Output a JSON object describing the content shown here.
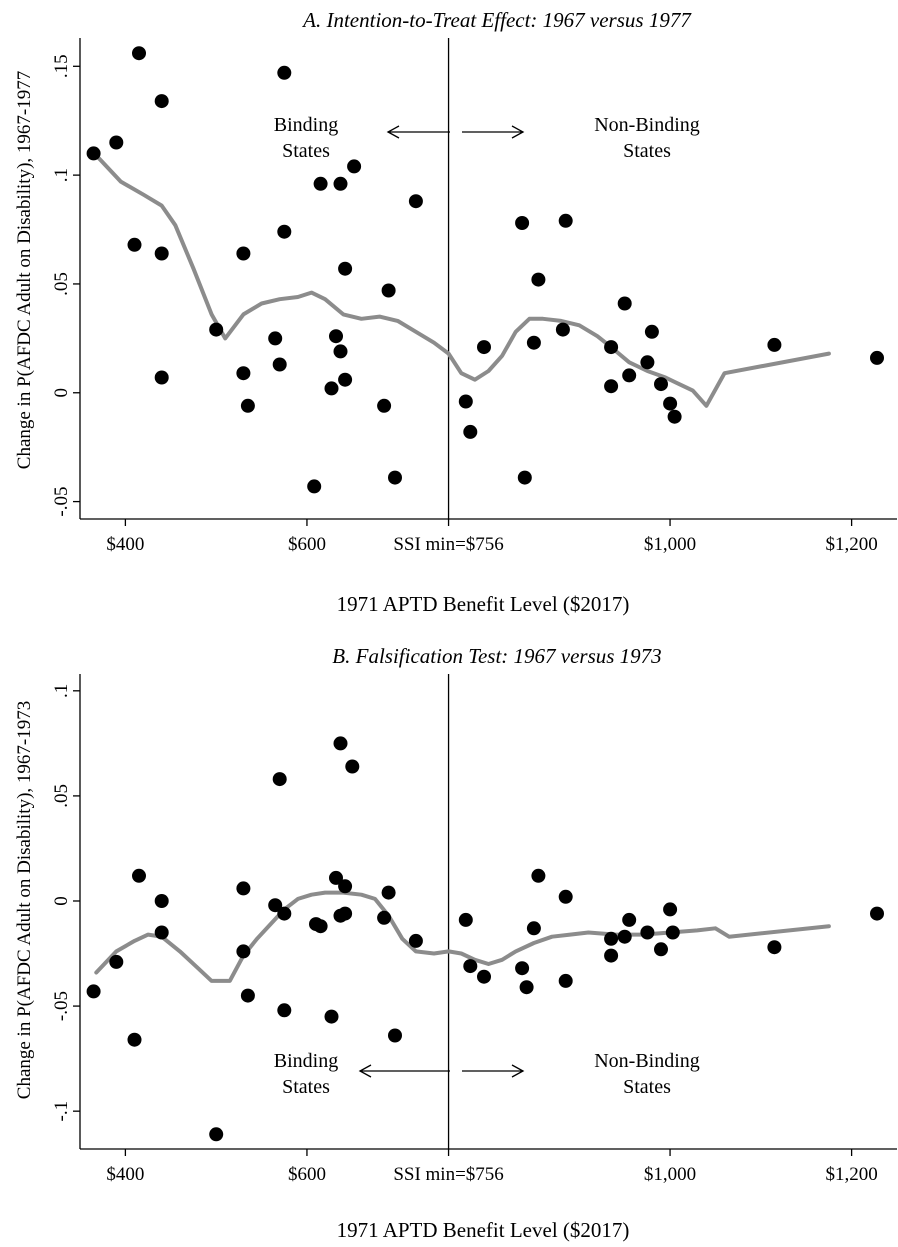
{
  "panels": [
    {
      "title": "A. Intention-to-Treat Effect: 1967 versus 1977",
      "xlabel": "1971 APTD Benefit Level ($2017)",
      "ylabel": "Change in P(AFDC Adult on Disability), 1967-1977",
      "x_ticks": [
        {
          "value": 400,
          "label": "$400"
        },
        {
          "value": 600,
          "label": "$600"
        },
        {
          "value": 1000,
          "label": "$1,000"
        },
        {
          "value": 1200,
          "label": "$1,200"
        }
      ],
      "threshold": {
        "value": 756,
        "label": "SSI min=$756"
      },
      "y_ticks": [
        {
          "value": 0.15,
          "label": ".15"
        },
        {
          "value": 0.1,
          "label": ".1"
        },
        {
          "value": 0.05,
          "label": ".05"
        },
        {
          "value": 0,
          "label": "0"
        },
        {
          "value": -0.05,
          "label": "-.05"
        }
      ],
      "binding_label": [
        "Binding",
        "States"
      ],
      "nonbinding_label": [
        "Non-Binding",
        "States"
      ]
    },
    {
      "title": "B. Falsification Test: 1967 versus 1973",
      "xlabel": "1971 APTD Benefit Level ($2017)",
      "ylabel": "Change in P(AFDC Adult on Disability), 1967-1973",
      "x_ticks": [
        {
          "value": 400,
          "label": "$400"
        },
        {
          "value": 600,
          "label": "$600"
        },
        {
          "value": 1000,
          "label": "$1,000"
        },
        {
          "value": 1200,
          "label": "$1,200"
        }
      ],
      "threshold": {
        "value": 756,
        "label": "SSI min=$756"
      },
      "y_ticks": [
        {
          "value": 0.1,
          "label": ".1"
        },
        {
          "value": 0.05,
          "label": ".05"
        },
        {
          "value": 0,
          "label": "0"
        },
        {
          "value": -0.05,
          "label": "-.05"
        },
        {
          "value": -0.1,
          "label": "-.1"
        }
      ],
      "binding_label": [
        "Binding",
        "States"
      ],
      "nonbinding_label": [
        "Non-Binding",
        "States"
      ]
    }
  ],
  "chart_data": [
    {
      "type": "scatter",
      "title": "A. Intention-to-Treat Effect: 1967 versus 1977",
      "xlabel": "1971 APTD Benefit Level ($2017)",
      "ylabel": "Change in P(AFDC Adult on Disability), 1967-1977",
      "xlim": [
        350,
        1250
      ],
      "ylim": [
        -0.058,
        0.163
      ],
      "grid": false,
      "threshold_x": 756,
      "points": [
        [
          365,
          0.11
        ],
        [
          390,
          0.115
        ],
        [
          410,
          0.068
        ],
        [
          415,
          0.156
        ],
        [
          440,
          0.134
        ],
        [
          440,
          0.064
        ],
        [
          440,
          0.007
        ],
        [
          500,
          0.029
        ],
        [
          530,
          0.064
        ],
        [
          530,
          0.009
        ],
        [
          535,
          -0.006
        ],
        [
          565,
          0.025
        ],
        [
          570,
          0.013
        ],
        [
          575,
          0.074
        ],
        [
          575,
          0.147
        ],
        [
          608,
          -0.043
        ],
        [
          615,
          0.096
        ],
        [
          627,
          0.002
        ],
        [
          632,
          0.026
        ],
        [
          637,
          0.096
        ],
        [
          637,
          0.019
        ],
        [
          642,
          0.057
        ],
        [
          642,
          0.006
        ],
        [
          652,
          0.104
        ],
        [
          685,
          -0.006
        ],
        [
          690,
          0.047
        ],
        [
          697,
          -0.039
        ],
        [
          720,
          0.088
        ],
        [
          775,
          -0.004
        ],
        [
          780,
          -0.018
        ],
        [
          795,
          0.021
        ],
        [
          837,
          0.078
        ],
        [
          840,
          -0.039
        ],
        [
          850,
          0.023
        ],
        [
          855,
          0.052
        ],
        [
          882,
          0.029
        ],
        [
          885,
          0.079
        ],
        [
          935,
          0.021
        ],
        [
          935,
          0.003
        ],
        [
          950,
          0.041
        ],
        [
          955,
          0.008
        ],
        [
          975,
          0.014
        ],
        [
          980,
          0.028
        ],
        [
          990,
          0.004
        ],
        [
          1000,
          -0.005
        ],
        [
          1005,
          -0.011
        ],
        [
          1115,
          0.022
        ],
        [
          1228,
          0.016
        ]
      ],
      "smooth": [
        [
          368,
          0.109
        ],
        [
          395,
          0.097
        ],
        [
          420,
          0.091
        ],
        [
          440,
          0.086
        ],
        [
          455,
          0.077
        ],
        [
          475,
          0.057
        ],
        [
          495,
          0.036
        ],
        [
          510,
          0.025
        ],
        [
          530,
          0.036
        ],
        [
          550,
          0.041
        ],
        [
          570,
          0.043
        ],
        [
          590,
          0.044
        ],
        [
          605,
          0.046
        ],
        [
          620,
          0.043
        ],
        [
          640,
          0.036
        ],
        [
          660,
          0.034
        ],
        [
          680,
          0.035
        ],
        [
          700,
          0.033
        ],
        [
          720,
          0.028
        ],
        [
          740,
          0.023
        ],
        [
          756,
          0.018
        ],
        [
          770,
          0.009
        ],
        [
          785,
          0.006
        ],
        [
          800,
          0.01
        ],
        [
          815,
          0.017
        ],
        [
          830,
          0.028
        ],
        [
          845,
          0.034
        ],
        [
          860,
          0.034
        ],
        [
          880,
          0.033
        ],
        [
          900,
          0.031
        ],
        [
          920,
          0.026
        ],
        [
          935,
          0.021
        ],
        [
          955,
          0.014
        ],
        [
          975,
          0.01
        ],
        [
          995,
          0.007
        ],
        [
          1010,
          0.004
        ],
        [
          1025,
          0.001
        ],
        [
          1040,
          -0.006
        ],
        [
          1060,
          0.009
        ],
        [
          1175,
          0.018
        ]
      ]
    },
    {
      "type": "scatter",
      "title": "B. Falsification Test: 1967 versus 1973",
      "xlabel": "1971 APTD Benefit Level ($2017)",
      "ylabel": "Change in P(AFDC Adult on Disability), 1967-1973",
      "xlim": [
        350,
        1250
      ],
      "ylim": [
        -0.118,
        0.108
      ],
      "grid": false,
      "threshold_x": 756,
      "points": [
        [
          365,
          -0.043
        ],
        [
          390,
          -0.029
        ],
        [
          410,
          -0.066
        ],
        [
          415,
          0.012
        ],
        [
          440,
          0.0
        ],
        [
          440,
          -0.015
        ],
        [
          500,
          -0.111
        ],
        [
          530,
          0.006
        ],
        [
          530,
          -0.024
        ],
        [
          535,
          -0.045
        ],
        [
          565,
          -0.002
        ],
        [
          570,
          0.058
        ],
        [
          575,
          -0.052
        ],
        [
          575,
          -0.006
        ],
        [
          610,
          -0.011
        ],
        [
          615,
          -0.012
        ],
        [
          627,
          -0.055
        ],
        [
          632,
          0.011
        ],
        [
          637,
          0.075
        ],
        [
          637,
          -0.007
        ],
        [
          642,
          0.007
        ],
        [
          642,
          -0.006
        ],
        [
          650,
          0.064
        ],
        [
          685,
          -0.008
        ],
        [
          690,
          0.004
        ],
        [
          697,
          -0.064
        ],
        [
          720,
          -0.019
        ],
        [
          775,
          -0.009
        ],
        [
          780,
          -0.031
        ],
        [
          795,
          -0.036
        ],
        [
          837,
          -0.032
        ],
        [
          842,
          -0.041
        ],
        [
          850,
          -0.013
        ],
        [
          855,
          0.012
        ],
        [
          885,
          0.002
        ],
        [
          885,
          -0.038
        ],
        [
          935,
          -0.026
        ],
        [
          935,
          -0.018
        ],
        [
          950,
          -0.017
        ],
        [
          955,
          -0.009
        ],
        [
          975,
          -0.015
        ],
        [
          990,
          -0.023
        ],
        [
          1000,
          -0.004
        ],
        [
          1003,
          -0.015
        ],
        [
          1115,
          -0.022
        ],
        [
          1228,
          -0.006
        ]
      ],
      "smooth": [
        [
          368,
          -0.034
        ],
        [
          390,
          -0.024
        ],
        [
          410,
          -0.019
        ],
        [
          425,
          -0.016
        ],
        [
          440,
          -0.017
        ],
        [
          460,
          -0.024
        ],
        [
          480,
          -0.032
        ],
        [
          495,
          -0.038
        ],
        [
          515,
          -0.038
        ],
        [
          530,
          -0.026
        ],
        [
          545,
          -0.018
        ],
        [
          560,
          -0.011
        ],
        [
          575,
          -0.004
        ],
        [
          590,
          0.001
        ],
        [
          605,
          0.003
        ],
        [
          620,
          0.004
        ],
        [
          640,
          0.004
        ],
        [
          660,
          0.003
        ],
        [
          675,
          0.001
        ],
        [
          690,
          -0.007
        ],
        [
          705,
          -0.018
        ],
        [
          720,
          -0.024
        ],
        [
          740,
          -0.025
        ],
        [
          756,
          -0.024
        ],
        [
          770,
          -0.025
        ],
        [
          785,
          -0.028
        ],
        [
          800,
          -0.03
        ],
        [
          815,
          -0.028
        ],
        [
          830,
          -0.024
        ],
        [
          850,
          -0.02
        ],
        [
          870,
          -0.017
        ],
        [
          890,
          -0.016
        ],
        [
          910,
          -0.015
        ],
        [
          940,
          -0.016
        ],
        [
          970,
          -0.016
        ],
        [
          1000,
          -0.015
        ],
        [
          1030,
          -0.014
        ],
        [
          1050,
          -0.013
        ],
        [
          1065,
          -0.017
        ],
        [
          1175,
          -0.012
        ]
      ]
    }
  ]
}
